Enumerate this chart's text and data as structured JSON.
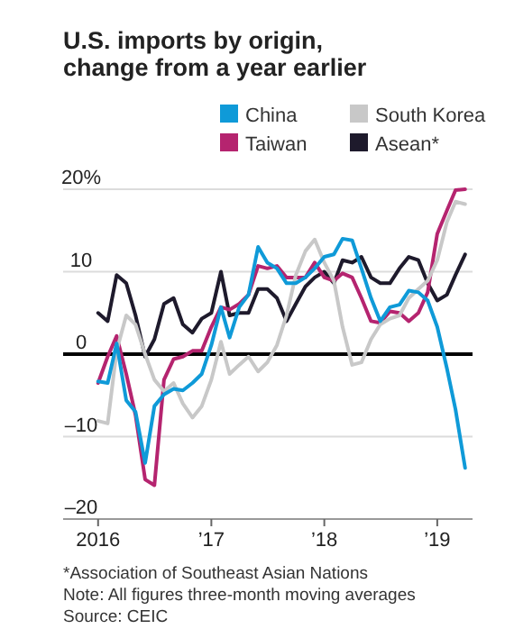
{
  "chart_data": {
    "type": "line",
    "title": "U.S. imports by origin, change from a year earlier",
    "x": [
      "2016-01",
      "2016-02",
      "2016-03",
      "2016-04",
      "2016-05",
      "2016-06",
      "2016-07",
      "2016-08",
      "2016-09",
      "2016-10",
      "2016-11",
      "2016-12",
      "2017-01",
      "2017-02",
      "2017-03",
      "2017-04",
      "2017-05",
      "2017-06",
      "2017-07",
      "2017-08",
      "2017-09",
      "2017-10",
      "2017-11",
      "2017-12",
      "2018-01",
      "2018-02",
      "2018-03",
      "2018-04",
      "2018-05",
      "2018-06",
      "2018-07",
      "2018-08",
      "2018-09",
      "2018-10",
      "2018-11",
      "2018-12",
      "2019-01",
      "2019-02",
      "2019-03",
      "2019-04"
    ],
    "series": [
      {
        "name": "China",
        "color": "#0f9ad8",
        "values": [
          -3.3,
          -3.5,
          1.3,
          -5.6,
          -7.0,
          -13.2,
          -6.3,
          -4.9,
          -4.2,
          -4.4,
          -3.5,
          -2.4,
          1.1,
          5.7,
          2.0,
          5.7,
          7.2,
          13.0,
          11.1,
          10.4,
          8.6,
          8.6,
          9.3,
          10.4,
          11.8,
          12.1,
          14.0,
          13.8,
          10.4,
          6.8,
          4.0,
          5.7,
          6.0,
          7.7,
          7.5,
          6.5,
          3.3,
          -1.7,
          -6.7,
          -13.8
        ]
      },
      {
        "name": "South Korea",
        "color": "#c8c8c8",
        "values": [
          -8.1,
          -8.4,
          0.4,
          4.7,
          3.6,
          0,
          -3.1,
          -4.5,
          -3.5,
          -6.0,
          -7.7,
          -6.3,
          -3.1,
          1.5,
          -2.4,
          -1.3,
          -0.3,
          -2.1,
          -1.0,
          1.1,
          4.7,
          9.6,
          12.5,
          13.9,
          11.1,
          8.9,
          3.3,
          -1.3,
          -1.0,
          1.8,
          3.6,
          4.3,
          4.7,
          6.8,
          7.9,
          8.9,
          11.4,
          16.0,
          18.5,
          18.2
        ]
      },
      {
        "name": "Taiwan",
        "color": "#b5246f",
        "values": [
          -3.5,
          -0.3,
          2.2,
          -2.4,
          -7.4,
          -15.2,
          -15.9,
          -3.1,
          -0.6,
          -0.3,
          0.4,
          0.4,
          3.3,
          5.7,
          5.4,
          6.1,
          7.2,
          10.7,
          10.4,
          10.7,
          9.3,
          9.3,
          9.3,
          11.1,
          9.3,
          8.9,
          9.8,
          9.3,
          6.8,
          4.0,
          3.8,
          5.2,
          5.0,
          4.0,
          5.0,
          7.5,
          14.6,
          17.4,
          19.9,
          20
        ]
      },
      {
        "name": "Asean*",
        "color": "#1e1a2c",
        "values": [
          5.0,
          4.0,
          9.6,
          8.6,
          4.7,
          -0.3,
          1.8,
          6.1,
          6.8,
          3.6,
          2.6,
          4.3,
          5.0,
          10.0,
          4.7,
          5.0,
          5.0,
          7.9,
          7.9,
          6.8,
          4.0,
          6.1,
          8.2,
          9.3,
          10.0,
          8.6,
          11.4,
          11.1,
          11.8,
          9.3,
          8.6,
          8.6,
          10.4,
          11.8,
          11.4,
          8.6,
          6.5,
          7.2,
          9.6,
          12.1
        ]
      }
    ],
    "xlim": [
      "2015-09-10",
      "2019-04-25"
    ],
    "xticks": [
      {
        "value": "2016-01-01",
        "label": "2016"
      },
      {
        "value": "2017-01-01",
        "label": "’17"
      },
      {
        "value": "2018-01-01",
        "label": "’18"
      },
      {
        "value": "2019-01-01",
        "label": "’19"
      }
    ],
    "ylim": [
      -20,
      20
    ],
    "yticks": [
      {
        "value": 20,
        "label": "20%"
      },
      10,
      0,
      {
        "value": -10,
        "label": "–10"
      },
      {
        "value": -20,
        "label": "–20"
      }
    ],
    "grid": "y",
    "ref_lines": [
      {
        "axis": "y",
        "value": 0,
        "color": "#000000"
      }
    ],
    "legend": "top right",
    "annotations": [
      "*Association of Southeast Asian Nations",
      "Note: All figures three-month moving averages",
      "Source: CEIC"
    ]
  }
}
